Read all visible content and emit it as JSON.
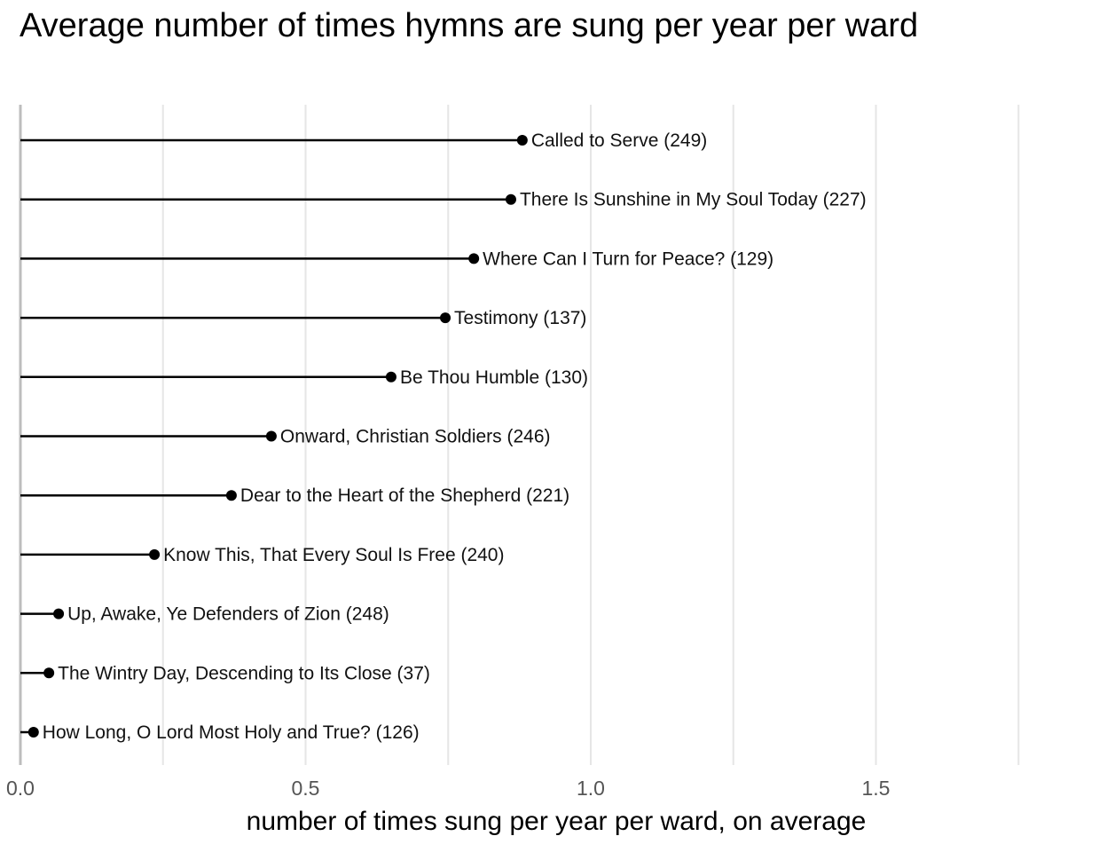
{
  "chart_data": {
    "type": "lollipop",
    "title": "Average number of times hymns are sung per year per ward",
    "xlabel": "number of times sung per year per ward, on average",
    "ylabel": "",
    "xlim": [
      0,
      1.75
    ],
    "x_ticks": [
      0.0,
      0.5,
      1.0,
      1.5
    ],
    "x_tick_labels": [
      "0.0",
      "0.5",
      "1.0",
      "1.5"
    ],
    "grid": "vertical",
    "points": [
      {
        "label": "Called to Serve (249)",
        "value": 0.88
      },
      {
        "label": "There Is Sunshine in My Soul Today (227)",
        "value": 0.86
      },
      {
        "label": "Where Can I Turn for Peace? (129)",
        "value": 0.795
      },
      {
        "label": "Testimony (137)",
        "value": 0.745
      },
      {
        "label": "Be Thou Humble (130)",
        "value": 0.65
      },
      {
        "label": "Onward, Christian Soldiers (246)",
        "value": 0.44
      },
      {
        "label": "Dear to the Heart of the Shepherd (221)",
        "value": 0.37
      },
      {
        "label": "Know This, That Every Soul Is Free (240)",
        "value": 0.235
      },
      {
        "label": "Up, Awake, Ye Defenders of Zion (248)",
        "value": 0.067
      },
      {
        "label": "The Wintry Day, Descending to Its Close (37)",
        "value": 0.05
      },
      {
        "label": "How Long, O Lord Most Holy and True? (126)",
        "value": 0.023
      }
    ]
  }
}
